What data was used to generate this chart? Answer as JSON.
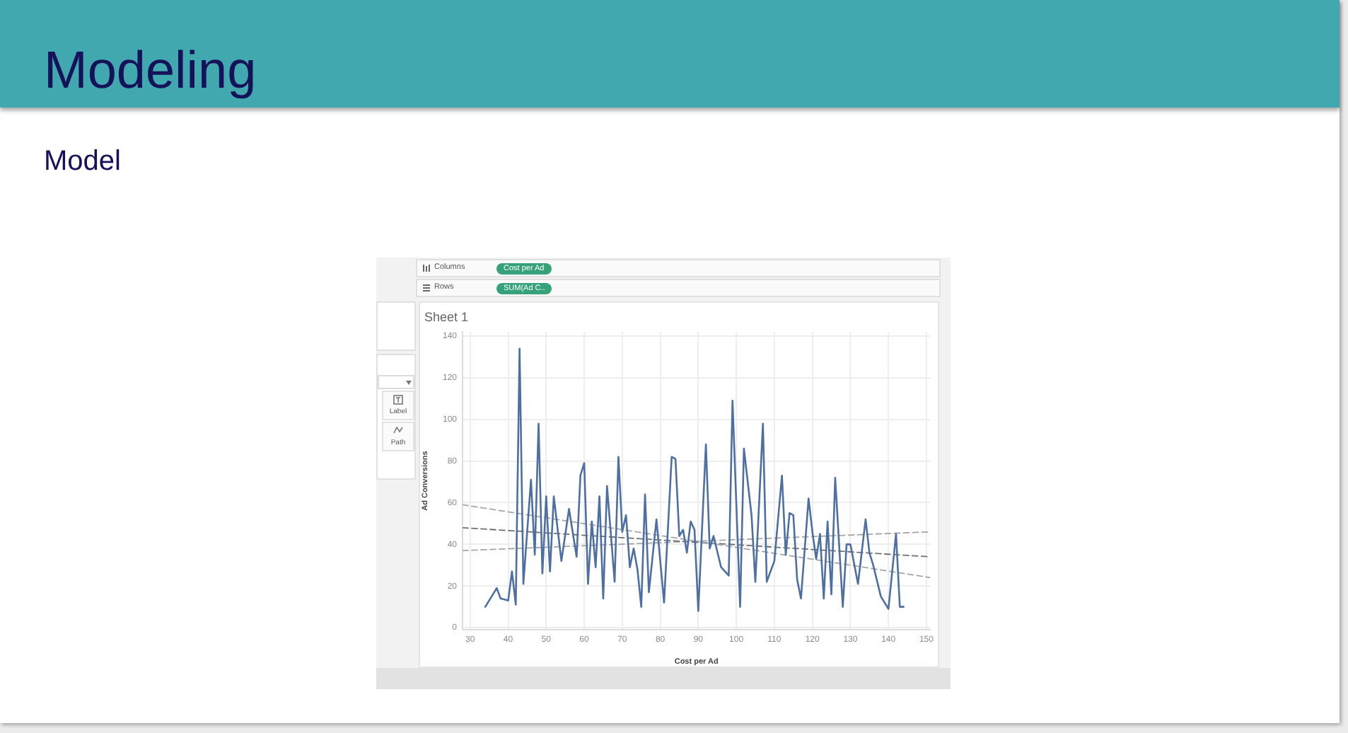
{
  "chart_data": {
    "type": "line",
    "title": "Modeling",
    "subtitle": "Model",
    "xlabel": "Cost per Ad",
    "ylabel": "Ad Conversions",
    "annotations": [
      "Columns",
      "Cost per Ad",
      "Rows",
      "SUM(Ad C..",
      "Label",
      "Path",
      "Sheet 1"
    ],
    "xlim": [
      28,
      151
    ],
    "xticks": [
      30,
      40,
      50,
      60,
      70,
      80,
      90,
      100,
      110,
      120,
      130,
      140,
      150
    ],
    "ylim": [
      -1,
      142
    ],
    "yticks": [
      0,
      20,
      40,
      60,
      80,
      100,
      120,
      140
    ],
    "grid": true,
    "marker": "none",
    "series": [
      {
        "color": "#4e6fa3",
        "line_style": "solid",
        "x": [
          34,
          37,
          38,
          40,
          41,
          42,
          43,
          44,
          46,
          47,
          48,
          49,
          50,
          51,
          52,
          54,
          56,
          58,
          59,
          60,
          61,
          62,
          63,
          64,
          65,
          66,
          68,
          69,
          70,
          71,
          72,
          73,
          74,
          75,
          76,
          77,
          79,
          81,
          83,
          84,
          85,
          86,
          87,
          88,
          89,
          90,
          92,
          93,
          94,
          96,
          98,
          99,
          101,
          102,
          104,
          105,
          107,
          108,
          110,
          112,
          113,
          114,
          115,
          116,
          117,
          119,
          120,
          121,
          122,
          123,
          124,
          125,
          126,
          128,
          129,
          130,
          132,
          134,
          135,
          136,
          138,
          140,
          142,
          143,
          144
        ],
        "values": [
          10,
          19,
          14,
          13,
          27,
          11,
          134,
          21,
          71,
          35,
          98,
          26,
          63,
          27,
          63,
          32,
          57,
          34,
          73,
          79,
          21,
          51,
          29,
          63,
          14,
          68,
          22,
          82,
          46,
          54,
          29,
          38,
          28,
          10,
          64,
          17,
          52,
          12,
          82,
          81,
          44,
          47,
          36,
          51,
          47,
          8,
          88,
          38,
          44,
          29,
          25,
          109,
          10,
          86,
          54,
          22,
          98,
          22,
          32,
          73,
          35,
          55,
          54,
          23,
          14,
          62,
          46,
          33,
          45,
          14,
          51,
          16,
          72,
          10,
          40,
          40,
          21,
          52,
          36,
          30,
          15,
          9,
          45,
          10,
          10
        ]
      },
      {
        "color": "#a6a6a6",
        "line_style": "dashed",
        "x": [
          28,
          151
        ],
        "values": [
          59,
          24
        ]
      },
      {
        "color": "#707070",
        "line_style": "dashed",
        "x": [
          28,
          151
        ],
        "values": [
          48,
          34
        ]
      },
      {
        "color": "#a6a6a6",
        "line_style": "dashed",
        "x": [
          28,
          151
        ],
        "values": [
          37,
          46
        ]
      }
    ]
  }
}
